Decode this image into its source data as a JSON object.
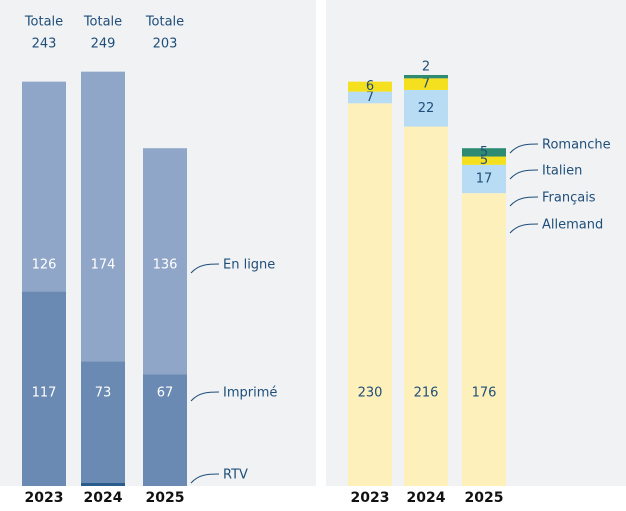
{
  "chart_data": [
    {
      "type": "stacked_bar",
      "categories": [
        "2023",
        "2024",
        "2025"
      ],
      "totals_label": "Totale",
      "totals": [
        243,
        249,
        203
      ],
      "ylim": [
        0,
        250
      ],
      "series": [
        {
          "name": "RTV",
          "color": "#2b5d8c",
          "values": [
            0,
            2,
            0
          ]
        },
        {
          "name": "Imprimé",
          "color": "#6a8ab3",
          "values": [
            117,
            73,
            67
          ]
        },
        {
          "name": "En ligne",
          "color": "#90a6c8",
          "values": [
            126,
            174,
            136
          ]
        }
      ]
    },
    {
      "type": "stacked_bar",
      "categories": [
        "2023",
        "2024",
        "2025"
      ],
      "ylim": [
        0,
        250
      ],
      "series": [
        {
          "name": "Allemand",
          "color": "#fdf0bb",
          "values": [
            230,
            216,
            176
          ]
        },
        {
          "name": "Français",
          "color": "#b8dcf4",
          "values": [
            7,
            22,
            17
          ]
        },
        {
          "name": "Italien",
          "color": "#f4e01e",
          "values": [
            6,
            7,
            5
          ]
        },
        {
          "name": "Romanche",
          "color": "#2f8a72",
          "values": [
            0,
            2,
            5
          ]
        }
      ]
    }
  ]
}
